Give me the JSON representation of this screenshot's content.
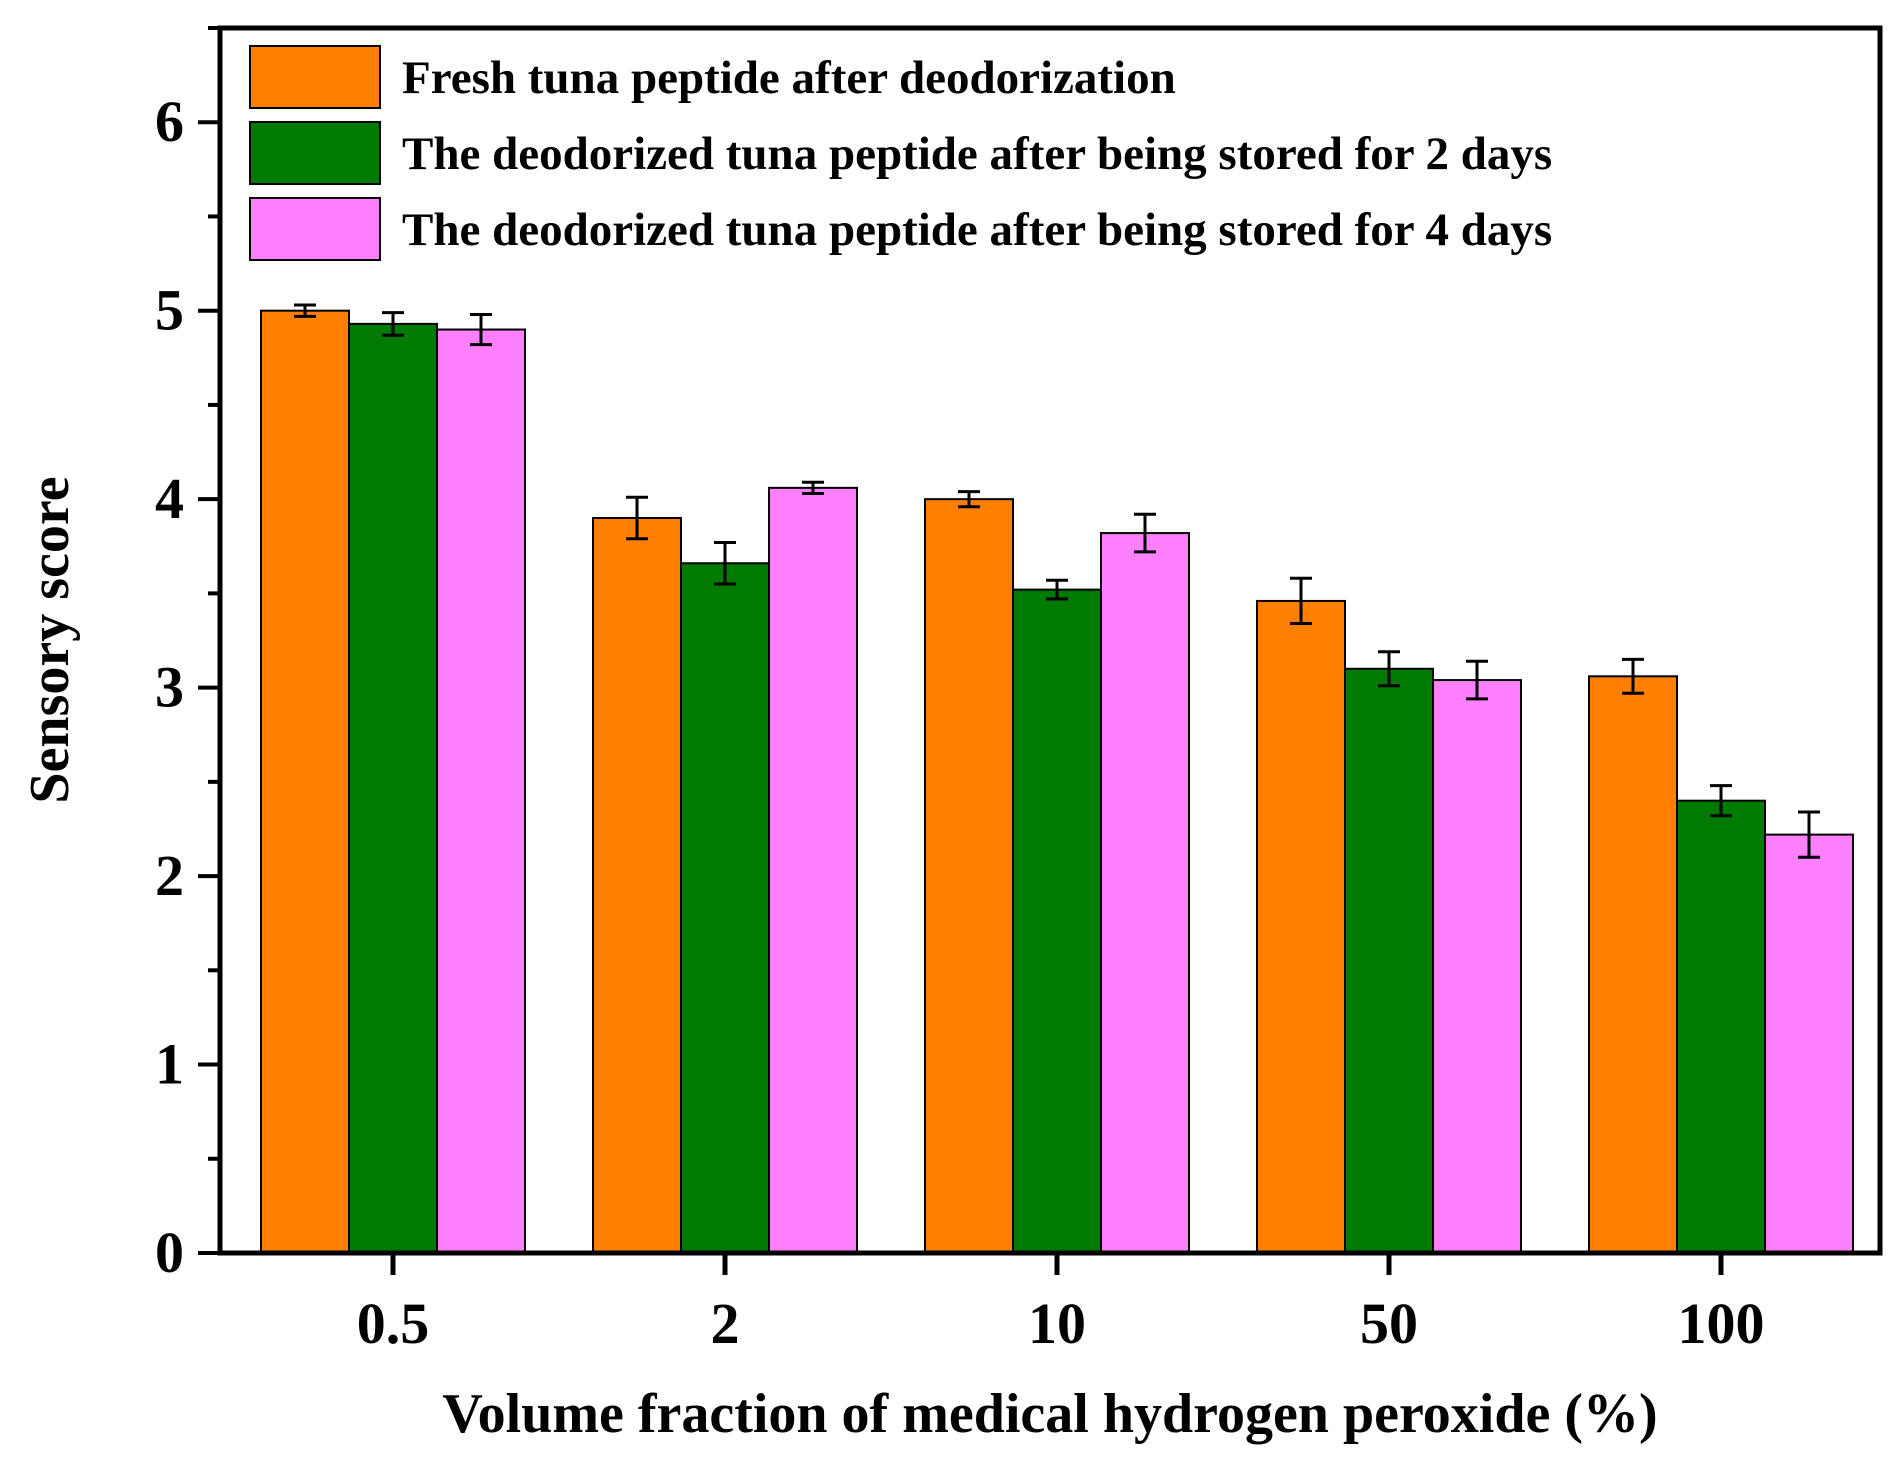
{
  "chart_data": {
    "type": "bar",
    "title": "",
    "xlabel": "Volume fraction of medical hydrogen peroxide (%)",
    "ylabel": "Sensory score",
    "categories": [
      "0.5",
      "2",
      "10",
      "50",
      "100"
    ],
    "ylim": [
      0,
      6.5
    ],
    "yticks": [
      0,
      1,
      2,
      3,
      4,
      5,
      6
    ],
    "ytick_labels": [
      "0",
      "1",
      "2",
      "3",
      "4",
      "5",
      "6"
    ],
    "grid": false,
    "legend_position": "top-left",
    "series": [
      {
        "name": "Fresh tuna peptide after deodorization",
        "color": "#ff8000",
        "values": [
          5.0,
          3.9,
          4.0,
          3.46,
          3.06
        ],
        "errors": [
          0.03,
          0.11,
          0.04,
          0.12,
          0.09
        ]
      },
      {
        "name": "The deodorized tuna peptide after being stored for 2 days",
        "color": "#007a00",
        "values": [
          4.93,
          3.66,
          3.52,
          3.1,
          2.4
        ],
        "errors": [
          0.06,
          0.11,
          0.05,
          0.09,
          0.08
        ]
      },
      {
        "name": "The deodorized tuna peptide after being stored for 4 days",
        "color": "#ff80ff",
        "values": [
          4.9,
          4.06,
          3.82,
          3.04,
          2.22
        ],
        "errors": [
          0.08,
          0.03,
          0.1,
          0.1,
          0.12
        ]
      }
    ]
  }
}
